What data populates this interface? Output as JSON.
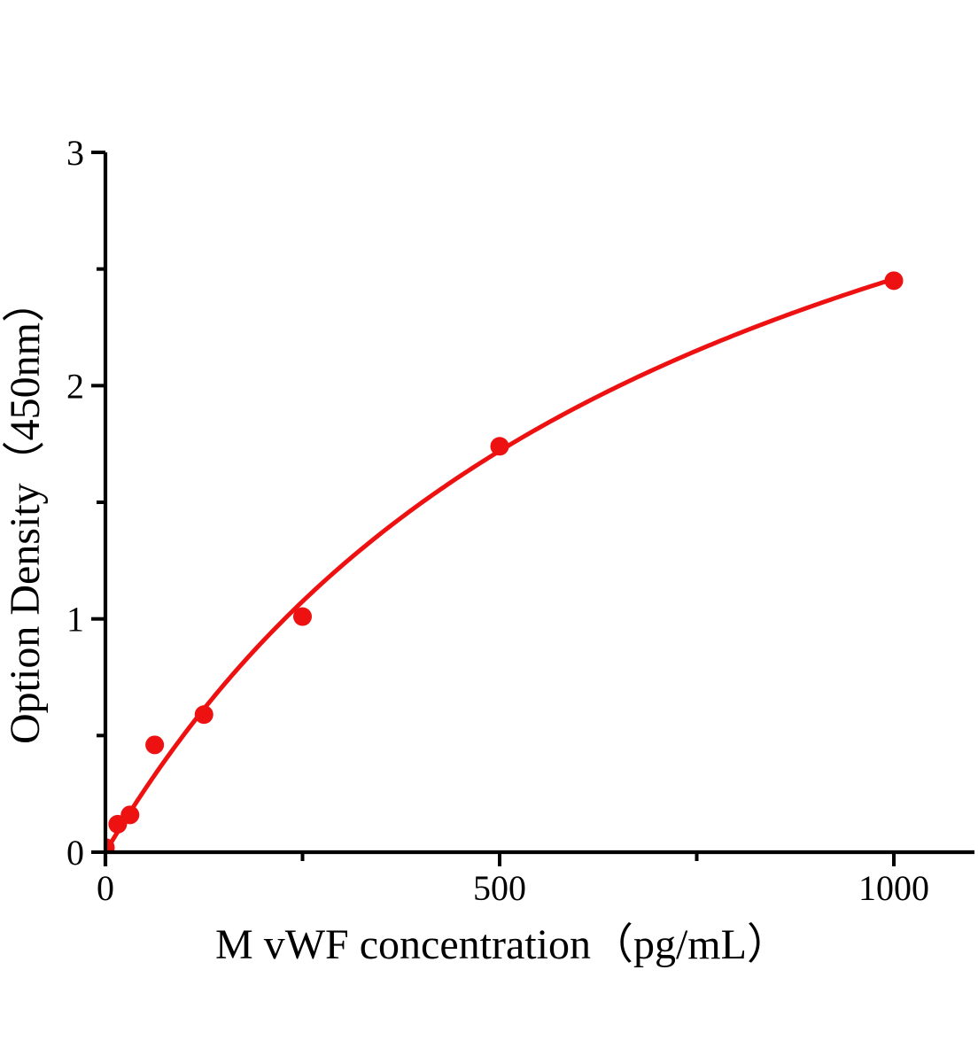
{
  "figure": {
    "background": "#ffffff"
  },
  "chart_data": {
    "type": "scatter",
    "title": "",
    "xlabel": "M vWF concentration（pg/mL）",
    "ylabel": "Option Density（450nm）",
    "points": [
      {
        "x": 0,
        "y": 0.02
      },
      {
        "x": 15.6,
        "y": 0.12
      },
      {
        "x": 31.2,
        "y": 0.16
      },
      {
        "x": 62.5,
        "y": 0.46
      },
      {
        "x": 125,
        "y": 0.59
      },
      {
        "x": 250,
        "y": 1.01
      },
      {
        "x": 500,
        "y": 1.74
      },
      {
        "x": 1000,
        "y": 2.45
      }
    ],
    "fit_curve": {
      "description": "smooth saturation fit through points",
      "formula": "y = Vmax*x/(Km+x)",
      "vmax": 4.3,
      "km": 750,
      "x_range": [
        0,
        1000
      ]
    },
    "x_ticks_major": [
      0,
      500,
      1000
    ],
    "x_ticks_minor": [
      250,
      750
    ],
    "y_ticks_major": [
      0,
      1,
      2,
      3
    ],
    "y_ticks_minor": [
      0.5,
      1.5,
      2.5
    ],
    "xlim": [
      0,
      1100
    ],
    "ylim": [
      0,
      3
    ],
    "grid": false,
    "legend": "none",
    "marker_color": "#ee1111",
    "curve_color": "#ee1111",
    "axis_color": "#000000"
  }
}
